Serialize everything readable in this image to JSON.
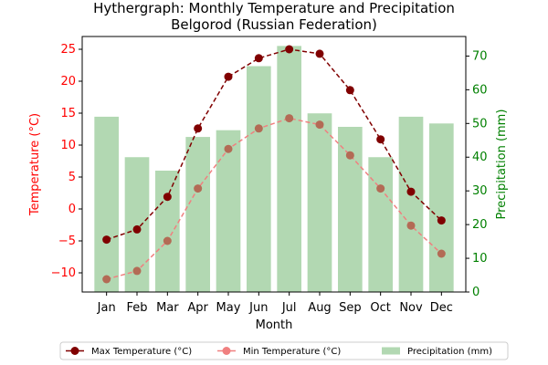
{
  "chart_data": {
    "type": "bar+line",
    "title_line1": "Hythergraph: Monthly Temperature and Precipitation",
    "title_line2": "Belgorod (Russian Federation)",
    "xlabel": "Month",
    "ylabel_left": "Temperature (°C)",
    "ylabel_right": "Precipitation (mm)",
    "categories": [
      "Jan",
      "Feb",
      "Mar",
      "Apr",
      "May",
      "Jun",
      "Jul",
      "Aug",
      "Sep",
      "Oct",
      "Nov",
      "Dec"
    ],
    "ylim_left": [
      -13,
      27
    ],
    "ylim_right": [
      0,
      75.8
    ],
    "yticks_left": [
      -10,
      -5,
      0,
      5,
      10,
      15,
      20,
      25
    ],
    "yticks_right": [
      0,
      10,
      20,
      30,
      40,
      50,
      60,
      70
    ],
    "series": [
      {
        "name": "Max Temperature (°C)",
        "kind": "line",
        "axis": "left",
        "color": "#800000",
        "values": [
          -4.8,
          -3.2,
          1.9,
          12.6,
          20.7,
          23.6,
          25.0,
          24.3,
          18.6,
          10.9,
          2.7,
          -1.8
        ]
      },
      {
        "name": "Min Temperature (°C)",
        "kind": "line",
        "axis": "left",
        "color": "#f08080",
        "values": [
          -11.0,
          -9.7,
          -5.0,
          3.2,
          9.4,
          12.6,
          14.2,
          13.2,
          8.4,
          3.2,
          -2.6,
          -7.0
        ]
      },
      {
        "name": "Precipitation (mm)",
        "kind": "bar",
        "axis": "right",
        "color": "#b2d8b2",
        "values": [
          52,
          40,
          36,
          46,
          48,
          67,
          73,
          53,
          49,
          40,
          52,
          50
        ]
      }
    ],
    "colors": {
      "left_axis": "#ff0000",
      "right_axis": "#008000"
    },
    "legend_position": "bottom"
  }
}
